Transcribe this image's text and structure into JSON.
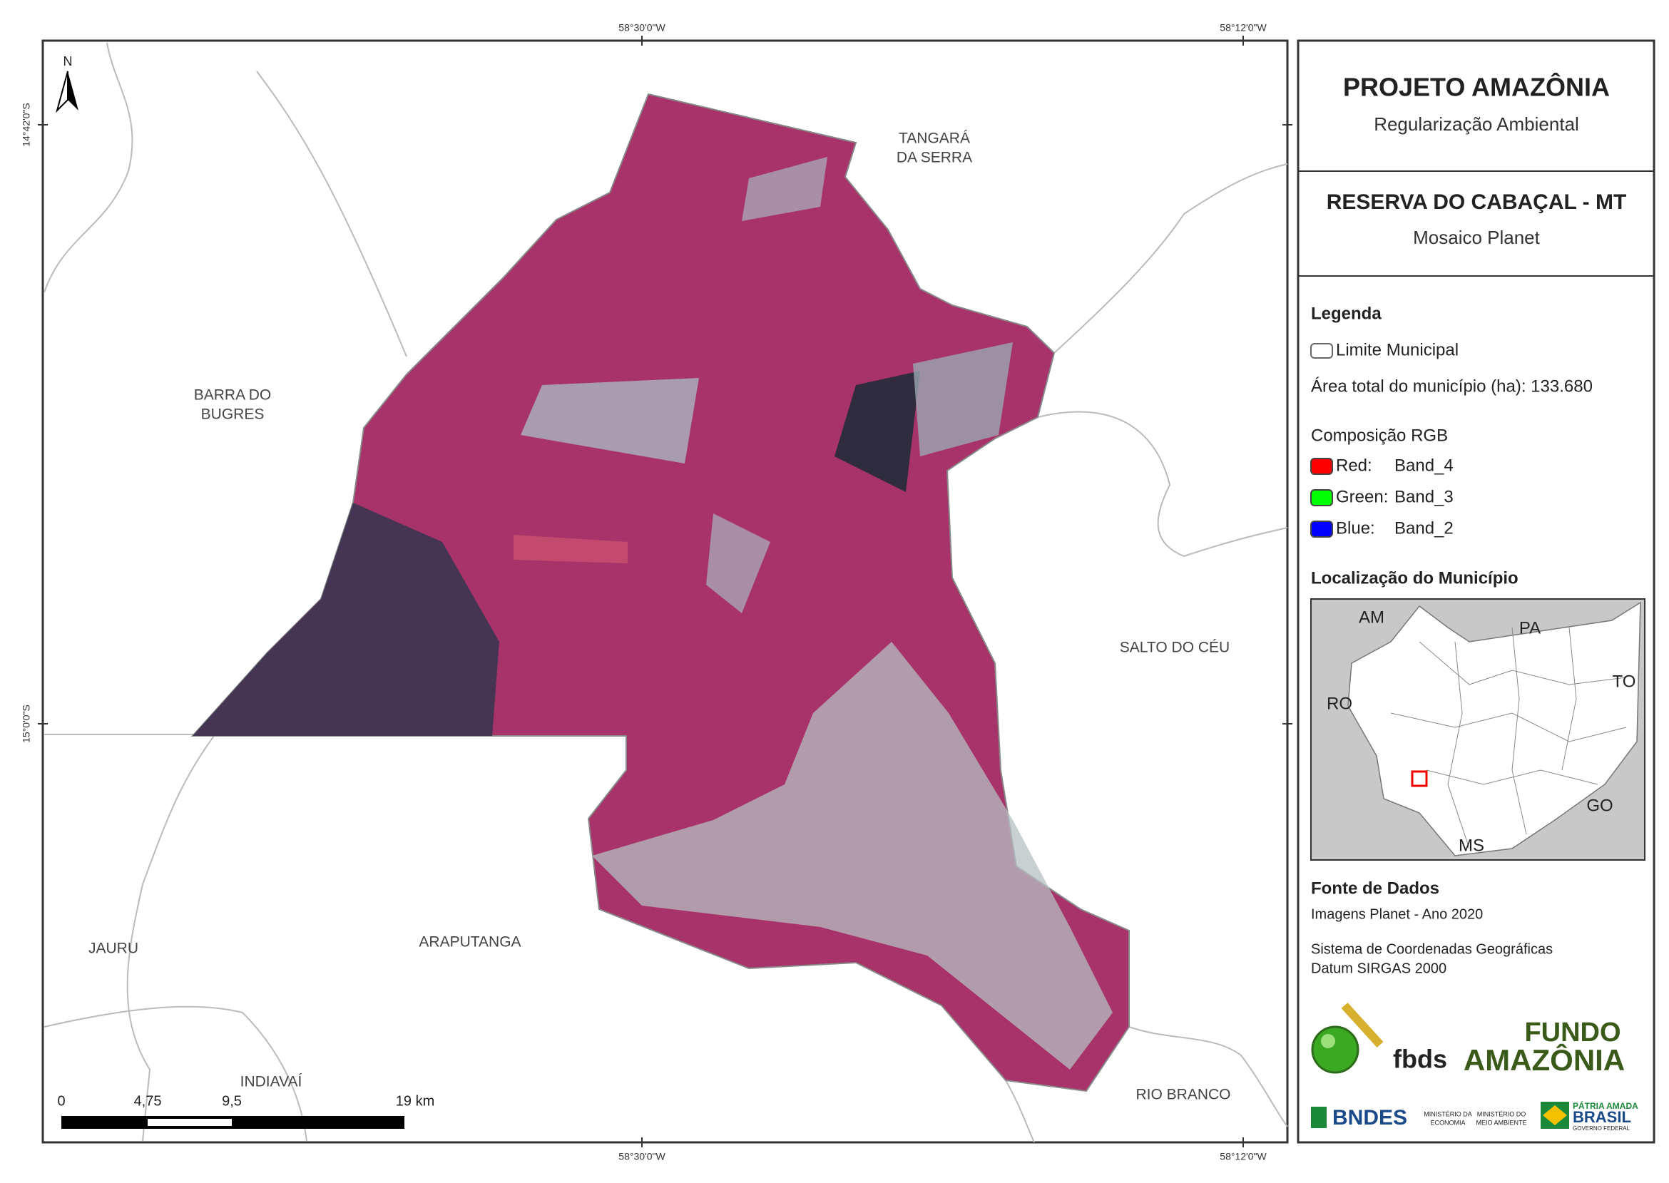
{
  "header": {
    "title": "PROJETO AMAZÔNIA",
    "subtitle": "Regularização Ambiental"
  },
  "map_title": {
    "name": "RESERVA DO CABAÇAL - MT",
    "source": "Mosaico Planet"
  },
  "coordinates": {
    "top": [
      "58°30'0\"W",
      "58°12'0\"W"
    ],
    "bottom": [
      "58°30'0\"W",
      "58°12'0\"W"
    ],
    "left": [
      "14°42'0\"S",
      "15°0'0\"S"
    ]
  },
  "north": "N",
  "map_labels": [
    [
      "TANGARÁ",
      "DA SERRA"
    ],
    [
      "BARRA DO",
      "BUGRES"
    ],
    [
      "SALTO DO CÉU"
    ],
    [
      "JAURU"
    ],
    [
      "ARAPUTANGA"
    ],
    [
      "INDIAVAÍ"
    ],
    [
      "RIO BRANCO"
    ]
  ],
  "scale_bar": [
    "0",
    "4,75",
    "9,5",
    "19 km"
  ],
  "legend": {
    "title": "Legenda",
    "boundary": "Limite Municipal",
    "area": "Área total do município (ha): 133.680",
    "rgb_title": "Composição RGB",
    "bands": [
      {
        "name": "Red:",
        "band": "Band_4",
        "color": "#ff0000"
      },
      {
        "name": "Green:",
        "band": "Band_3",
        "color": "#00ff00"
      },
      {
        "name": "Blue:",
        "band": "Band_2",
        "color": "#0000ff"
      }
    ]
  },
  "location": {
    "title": "Localização do Município",
    "states": [
      "AM",
      "PA",
      "RO",
      "TO",
      "GO",
      "MS"
    ]
  },
  "sources": {
    "title": "Fonte de Dados",
    "lines": [
      "Imagens Planet - Ano 2020",
      "Sistema de Coordenadas Geográficas",
      "Datum SIRGAS 2000"
    ]
  },
  "logos": {
    "fbds": "fbds",
    "fundo": [
      "FUNDO",
      "AMAZÔNIA"
    ],
    "bndes": "BNDES",
    "ministries": [
      "MINISTÉRIO DA",
      "ECONOMIA",
      "MINISTÉRIO DO",
      "MEIO AMBIENTE"
    ],
    "gov": [
      "PÁTRIA AMADA",
      "BRASIL",
      "GOVERNO FEDERAL"
    ]
  }
}
